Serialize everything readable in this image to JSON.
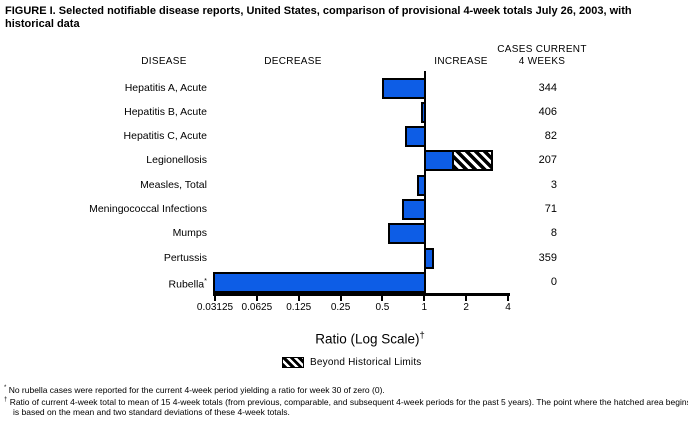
{
  "title": "FIGURE I. Selected notifiable disease reports, United States, comparison of provisional 4-week totals July 26, 2003, with historical data",
  "columns": {
    "disease": "DISEASE",
    "decrease": "DECREASE",
    "increase": "INCREASE",
    "cases_line1": "CASES CURRENT",
    "cases_line2": "4 WEEKS"
  },
  "chart_data": {
    "type": "bar",
    "orientation": "horizontal",
    "scale": "log2",
    "title": "FIGURE I. Selected notifiable disease reports, United States, comparison of provisional 4-week totals July 26, 2003, with historical data",
    "axis": {
      "label": "Ratio (Log Scale)",
      "label_superscript": "†",
      "ticks": [
        0.03125,
        0.0625,
        0.125,
        0.25,
        0.5,
        1,
        2,
        4
      ],
      "min": 0.03125,
      "max": 4,
      "baseline": 1
    },
    "rows": [
      {
        "disease": "Hepatitis A, Acute",
        "label_superscript": "",
        "ratio": 0.5,
        "cases": 344,
        "beyond_limit_ratio": null
      },
      {
        "disease": "Hepatitis B, Acute",
        "label_superscript": "",
        "ratio": 0.94,
        "cases": 406,
        "beyond_limit_ratio": null
      },
      {
        "disease": "Hepatitis C, Acute",
        "label_superscript": "",
        "ratio": 0.73,
        "cases": 82,
        "beyond_limit_ratio": null
      },
      {
        "disease": "Legionellosis",
        "label_superscript": "",
        "ratio": 1.62,
        "cases": 207,
        "beyond_limit_ratio": 3.1
      },
      {
        "disease": "Measles, Total",
        "label_superscript": "",
        "ratio": 0.89,
        "cases": 3,
        "beyond_limit_ratio": null
      },
      {
        "disease": "Meningococcal Infections",
        "label_superscript": "",
        "ratio": 0.69,
        "cases": 71,
        "beyond_limit_ratio": null
      },
      {
        "disease": "Mumps",
        "label_superscript": "",
        "ratio": 0.55,
        "cases": 8,
        "beyond_limit_ratio": null
      },
      {
        "disease": "Pertussis",
        "label_superscript": "",
        "ratio": 1.15,
        "cases": 359,
        "beyond_limit_ratio": null
      },
      {
        "disease": "Rubella",
        "label_superscript": "*",
        "ratio": 0,
        "cases": 0,
        "beyond_limit_ratio": null
      }
    ],
    "legend": {
      "swatch": "hatched-pattern",
      "label": "Beyond Historical Limits",
      "position": "below-axis"
    },
    "bar_color": "#0d5de6",
    "bar_border_color": "#000000"
  },
  "footnotes": [
    {
      "marker": "*",
      "text": "No rubella cases were reported for the current 4-week period yielding a ratio for week 30 of zero (0)."
    },
    {
      "marker": "†",
      "text": "Ratio of current 4-week total to mean of 15 4-week totals (from previous, comparable, and subsequent 4-week periods for the past 5 years). The point where the hatched area begins is based on the mean and two standard deviations of these 4-week totals."
    }
  ]
}
